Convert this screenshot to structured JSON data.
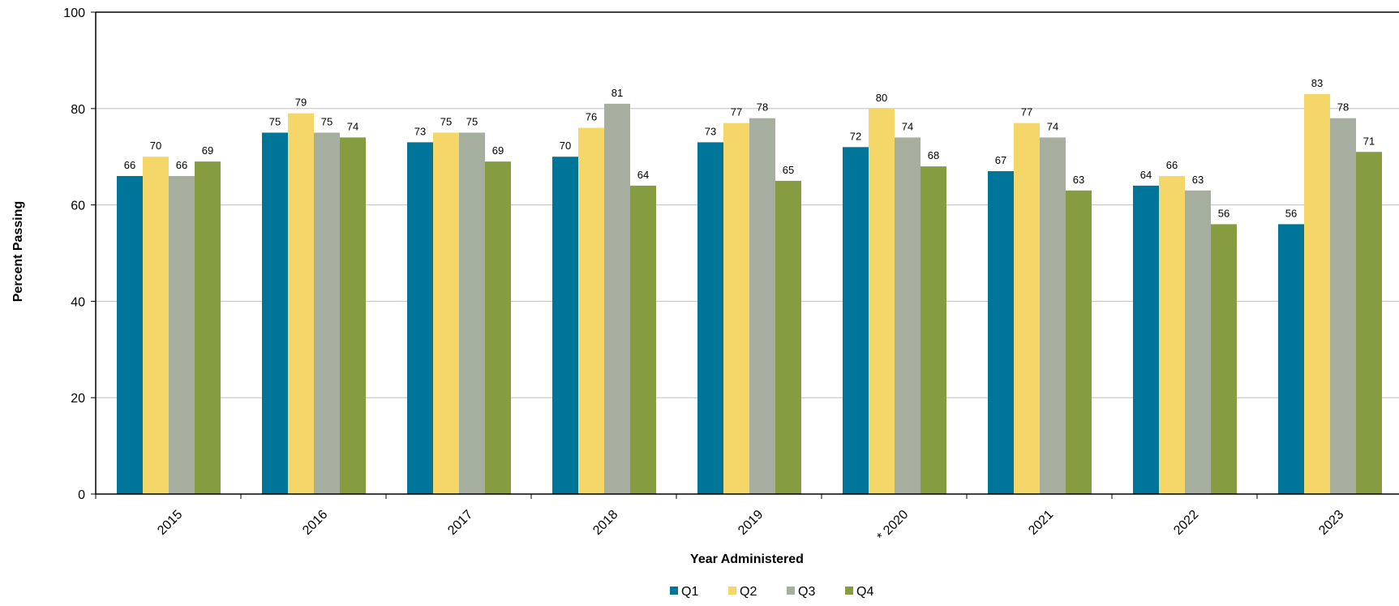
{
  "chart_data": {
    "type": "bar",
    "categories": [
      "2015",
      "2016",
      "2017",
      "2018",
      "2019",
      "* 2020",
      "2021",
      "2022",
      "2023"
    ],
    "series": [
      {
        "name": "Q1",
        "color": "#00759A",
        "values": [
          66,
          75,
          73,
          70,
          73,
          72,
          67,
          64,
          56
        ]
      },
      {
        "name": "Q2",
        "color": "#F5D769",
        "values": [
          70,
          79,
          75,
          76,
          77,
          80,
          77,
          66,
          83
        ]
      },
      {
        "name": "Q3",
        "color": "#A6AEA0",
        "values": [
          66,
          75,
          75,
          81,
          78,
          74,
          74,
          63,
          78
        ]
      },
      {
        "name": "Q4",
        "color": "#869C40",
        "values": [
          69,
          74,
          69,
          64,
          65,
          68,
          63,
          56,
          71
        ]
      }
    ],
    "xlabel": "Year Administered",
    "ylabel": "Percent Passing",
    "ylim": [
      0,
      100
    ],
    "yticks": [
      "0",
      "20",
      "40",
      "60",
      "80",
      "100"
    ],
    "grid": true,
    "legend_position": "bottom-center"
  }
}
